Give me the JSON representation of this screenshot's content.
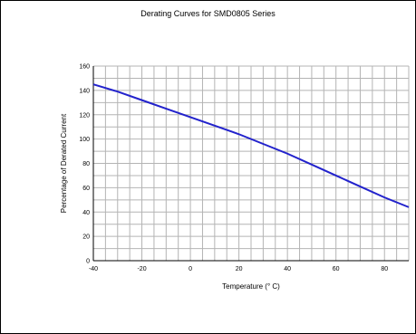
{
  "chart_data": {
    "type": "line",
    "title": "Derating Curves for SMD0805 Series",
    "xlabel": "Temperature (° C)",
    "ylabel": "Percentage of Derated Current",
    "xlim": [
      -40,
      90
    ],
    "ylim": [
      0,
      160
    ],
    "x_ticks": [
      -40,
      -20,
      0,
      20,
      40,
      60,
      80
    ],
    "y_ticks": [
      0,
      20,
      40,
      60,
      80,
      100,
      120,
      140,
      160
    ],
    "x_minor_step": 5,
    "y_minor_step": 10,
    "grid": true,
    "series": [
      {
        "color": "#2222cc",
        "x": [
          -40,
          -30,
          -20,
          -10,
          0,
          10,
          20,
          30,
          40,
          50,
          60,
          70,
          80,
          90
        ],
        "y": [
          145,
          139,
          132,
          125,
          118,
          111,
          104,
          96,
          88,
          79,
          70,
          61,
          52,
          44
        ]
      }
    ]
  }
}
